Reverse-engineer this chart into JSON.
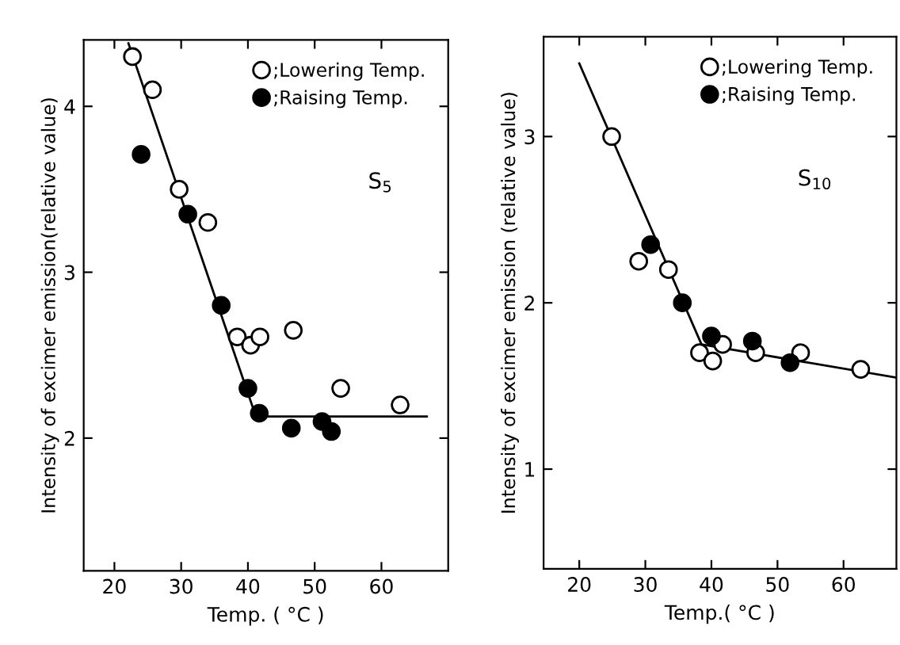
{
  "chart_data": [
    {
      "type": "scatter",
      "xlabel": "Temp. ( °C )",
      "ylabel": "Intensity of excimer emission(relative value)",
      "annotations": [
        "S$_{5}$"
      ],
      "xlim": [
        15.4,
        70
      ],
      "ylim": [
        1.2,
        4.4
      ],
      "xticks": [
        20,
        30,
        40,
        50,
        60
      ],
      "yticks": [
        2,
        3,
        4
      ],
      "legend": "top right",
      "grid": false,
      "series": [
        {
          "name": ";Lowering Temp.",
          "marker": "circle",
          "color": "#ffffff",
          "x": [
            22.7,
            25.7,
            29.7,
            34.0,
            38.4,
            40.4,
            41.8,
            46.8,
            53.9,
            62.8
          ],
          "values": [
            4.3,
            4.1,
            3.5,
            3.3,
            2.61,
            2.56,
            2.61,
            2.65,
            2.3,
            2.2
          ]
        },
        {
          "name": ";Raising Temp.",
          "marker": "circle",
          "color": "#000000",
          "x": [
            24.0,
            31.0,
            36.0,
            40.0,
            41.7,
            46.5,
            51.1,
            52.5
          ],
          "values": [
            3.71,
            3.35,
            2.8,
            2.3,
            2.15,
            2.06,
            2.1,
            2.04
          ]
        },
        {
          "type": "line",
          "marker": "none",
          "color": "#000000",
          "x": [
            22.1,
            41.2,
            66.8
          ],
          "values": [
            4.38,
            2.13,
            2.13
          ]
        }
      ]
    },
    {
      "type": "scatter",
      "xlabel": "Temp.( °C )",
      "ylabel": "Intensity of excimer emission (relative value)",
      "annotations": [
        "S$_{10}$"
      ],
      "xlim": [
        14.6,
        68
      ],
      "ylim": [
        0.4,
        3.6
      ],
      "xticks": [
        20,
        30,
        40,
        50,
        60
      ],
      "yticks": [
        1,
        2,
        3
      ],
      "legend": "top right",
      "grid": false,
      "series": [
        {
          "name": ";Lowering Temp.",
          "marker": "circle",
          "color": "#ffffff",
          "x": [
            24.9,
            29.0,
            33.5,
            38.2,
            40.2,
            41.7,
            46.7,
            53.5,
            62.6
          ],
          "values": [
            3.0,
            2.25,
            2.2,
            1.7,
            1.65,
            1.75,
            1.7,
            1.7,
            1.6
          ]
        },
        {
          "name": ";Raising Temp.",
          "marker": "circle",
          "color": "#000000",
          "x": [
            30.8,
            35.6,
            40.0,
            46.2,
            51.9
          ],
          "values": [
            2.35,
            2.0,
            1.8,
            1.77,
            1.64
          ]
        },
        {
          "type": "line",
          "marker": "none",
          "color": "#000000",
          "x": [
            20.0,
            38.5,
            68.0
          ],
          "values": [
            3.44,
            1.75,
            1.55
          ]
        }
      ]
    }
  ]
}
